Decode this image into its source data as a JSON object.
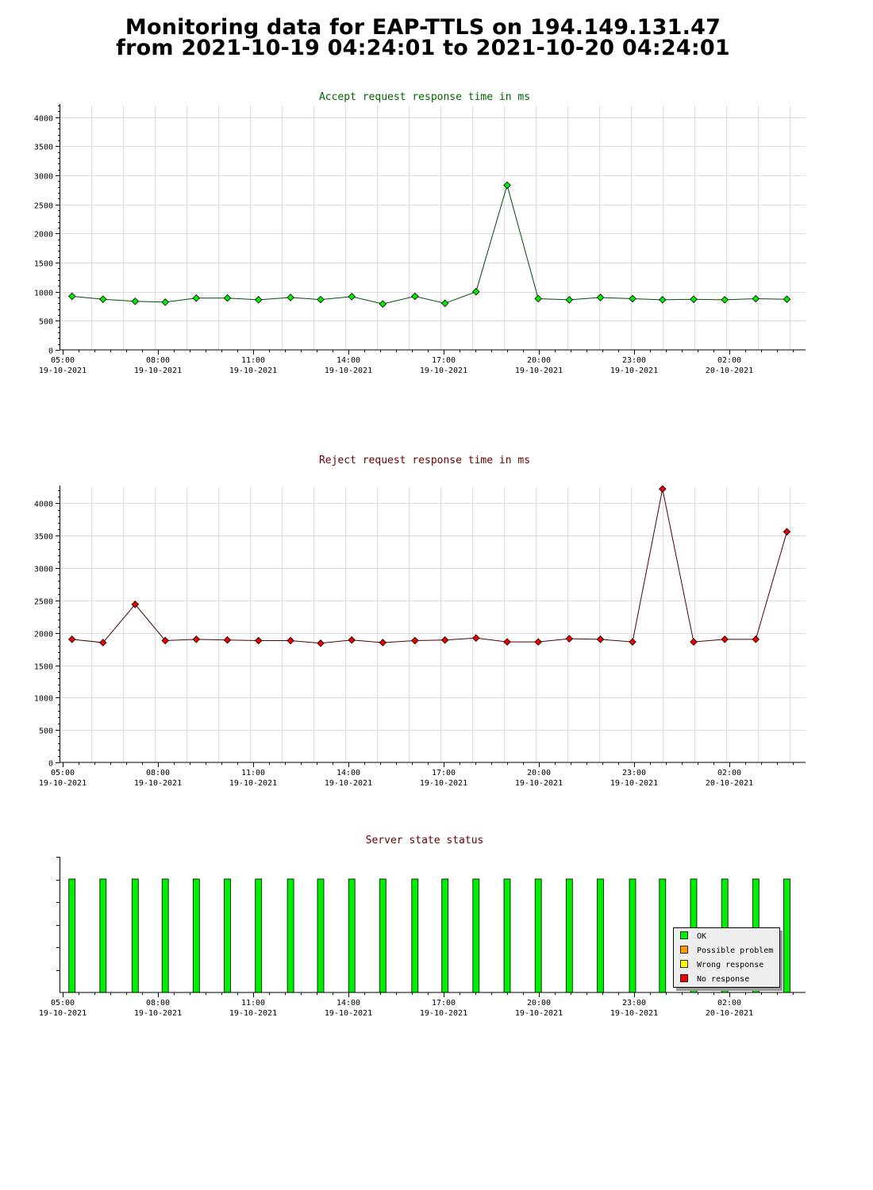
{
  "page": {
    "title_line1": "Monitoring data for EAP-TTLS on 194.149.131.47",
    "title_line2": "from 2021-10-19 04:24:01 to 2021-10-20 04:24:01"
  },
  "x_axis_ticks": [
    {
      "time": "05:00",
      "date": "19-10-2021"
    },
    {
      "time": "08:00",
      "date": "19-10-2021"
    },
    {
      "time": "11:00",
      "date": "19-10-2021"
    },
    {
      "time": "14:00",
      "date": "19-10-2021"
    },
    {
      "time": "17:00",
      "date": "19-10-2021"
    },
    {
      "time": "20:00",
      "date": "19-10-2021"
    },
    {
      "time": "23:00",
      "date": "19-10-2021"
    },
    {
      "time": "02:00",
      "date": "20-10-2021"
    }
  ],
  "chart_data": [
    {
      "type": "line",
      "title": "Accept request response time in ms",
      "title_color": "#006400",
      "line_color": "#004d00",
      "marker_color": "#00ee00",
      "ylim": [
        0,
        4200
      ],
      "yticks": [
        0,
        500,
        1000,
        1500,
        2000,
        2500,
        3000,
        3500,
        4000
      ],
      "xlim": [
        "2021-10-19 04:40",
        "2021-10-20 04:40"
      ],
      "x": [
        "2021-10-19 05:04",
        "2021-10-19 06:04",
        "2021-10-19 07:06",
        "2021-10-19 08:04",
        "2021-10-19 09:04",
        "2021-10-19 10:04",
        "2021-10-19 11:04",
        "2021-10-19 12:06",
        "2021-10-19 13:04",
        "2021-10-19 14:04",
        "2021-10-19 15:04",
        "2021-10-19 16:06",
        "2021-10-19 17:04",
        "2021-10-19 18:04",
        "2021-10-19 19:04",
        "2021-10-19 20:04",
        "2021-10-19 21:04",
        "2021-10-19 22:04",
        "2021-10-19 23:06",
        "2021-10-20 00:04",
        "2021-10-20 01:04",
        "2021-10-20 02:04",
        "2021-10-20 03:04",
        "2021-10-20 04:04"
      ],
      "y": [
        920,
        870,
        835,
        820,
        890,
        890,
        860,
        900,
        865,
        915,
        790,
        920,
        800,
        1000,
        2830,
        880,
        860,
        900,
        880,
        860,
        870,
        860,
        880,
        870
      ]
    },
    {
      "type": "line",
      "title": "Reject request response time in ms",
      "title_color": "#660000",
      "line_color": "#4d0000",
      "marker_color": "#ee0000",
      "ylim": [
        0,
        4250
      ],
      "yticks": [
        0,
        500,
        1000,
        1500,
        2000,
        2500,
        3000,
        3500,
        4000
      ],
      "xlim": [
        "2021-10-19 04:40",
        "2021-10-20 04:40"
      ],
      "x": [
        "2021-10-19 05:04",
        "2021-10-19 06:04",
        "2021-10-19 07:06",
        "2021-10-19 08:04",
        "2021-10-19 09:04",
        "2021-10-19 10:04",
        "2021-10-19 11:04",
        "2021-10-19 12:06",
        "2021-10-19 13:04",
        "2021-10-19 14:04",
        "2021-10-19 15:04",
        "2021-10-19 16:06",
        "2021-10-19 17:04",
        "2021-10-19 18:04",
        "2021-10-19 19:04",
        "2021-10-19 20:04",
        "2021-10-19 21:04",
        "2021-10-19 22:04",
        "2021-10-19 23:06",
        "2021-10-20 00:04",
        "2021-10-20 01:04",
        "2021-10-20 02:04",
        "2021-10-20 03:04",
        "2021-10-20 04:04"
      ],
      "y": [
        1900,
        1850,
        2440,
        1880,
        1900,
        1890,
        1880,
        1880,
        1840,
        1890,
        1850,
        1880,
        1890,
        1920,
        1860,
        1860,
        1910,
        1900,
        1860,
        4220,
        1860,
        1900,
        1900,
        3560
      ]
    },
    {
      "type": "bar",
      "title": "Server state status",
      "title_color": "#660000",
      "xlim": [
        "2021-10-19 04:40",
        "2021-10-20 04:40"
      ],
      "x": [
        "2021-10-19 05:04",
        "2021-10-19 06:04",
        "2021-10-19 07:06",
        "2021-10-19 08:04",
        "2021-10-19 09:04",
        "2021-10-19 10:04",
        "2021-10-19 11:04",
        "2021-10-19 12:06",
        "2021-10-19 13:04",
        "2021-10-19 14:04",
        "2021-10-19 15:04",
        "2021-10-19 16:06",
        "2021-10-19 17:04",
        "2021-10-19 18:04",
        "2021-10-19 19:04",
        "2021-10-19 20:04",
        "2021-10-19 21:04",
        "2021-10-19 22:04",
        "2021-10-19 23:06",
        "2021-10-20 00:04",
        "2021-10-20 01:04",
        "2021-10-20 02:04",
        "2021-10-20 03:04",
        "2021-10-20 04:04"
      ],
      "states": [
        "OK",
        "OK",
        "OK",
        "OK",
        "OK",
        "OK",
        "OK",
        "OK",
        "OK",
        "OK",
        "OK",
        "OK",
        "OK",
        "OK",
        "OK",
        "OK",
        "OK",
        "OK",
        "OK",
        "OK",
        "OK",
        "OK",
        "OK",
        "OK"
      ],
      "legend": [
        {
          "label": "OK",
          "color": "#00ee00"
        },
        {
          "label": "Possible problem",
          "color": "#ff9900"
        },
        {
          "label": "Wrong response",
          "color": "#ffff00"
        },
        {
          "label": "No response",
          "color": "#ee0000"
        }
      ],
      "legend_placement": "bottom-right"
    }
  ]
}
